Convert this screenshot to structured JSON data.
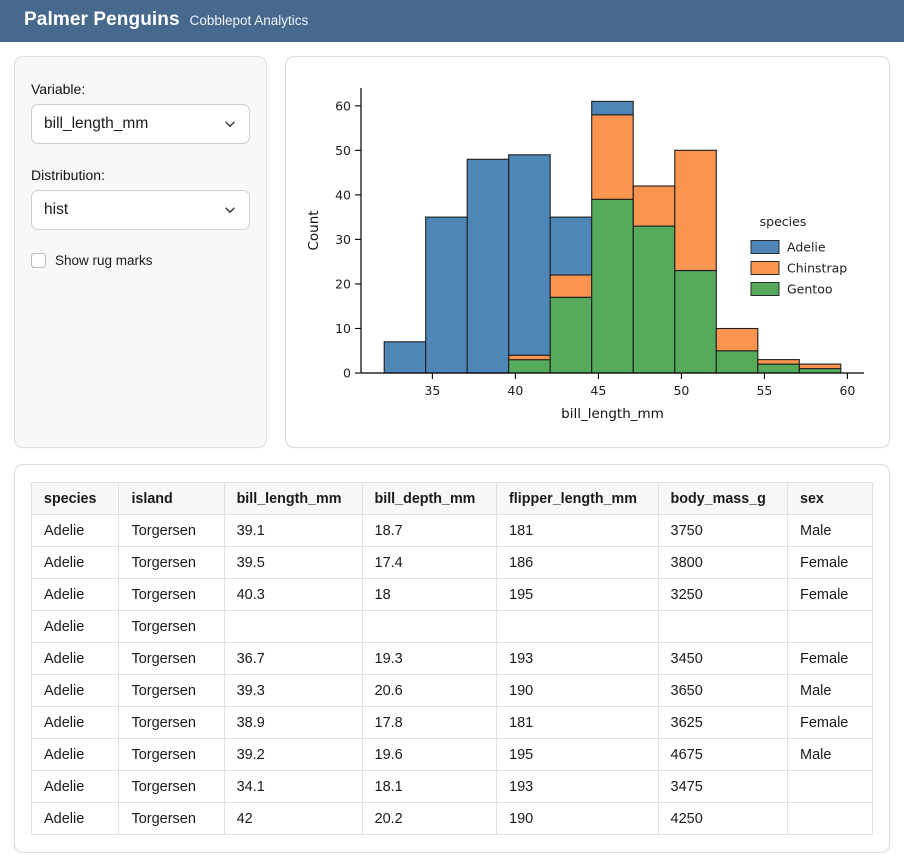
{
  "header": {
    "title": "Palmer Penguins",
    "subtitle": "Cobblepot Analytics"
  },
  "sidebar": {
    "variable_label": "Variable:",
    "variable_value": "bill_length_mm",
    "distribution_label": "Distribution:",
    "distribution_value": "hist",
    "rug_label": "Show rug marks",
    "rug_checked": false
  },
  "chart_data": {
    "type": "bar",
    "subtype": "stacked-histogram",
    "title": "",
    "xlabel": "bill_length_mm",
    "ylabel": "Count",
    "bin_start": 32.1,
    "bin_width": 2.5,
    "bin_count": 11,
    "xlim": [
      30.7,
      61.0
    ],
    "ylim": [
      0,
      64
    ],
    "xticks": [
      35,
      40,
      45,
      50,
      55,
      60
    ],
    "yticks": [
      0,
      10,
      20,
      30,
      40,
      50,
      60
    ],
    "grid": false,
    "legend_title": "species",
    "legend_position": "center-right",
    "stack_order_bottom_to_top": [
      "Gentoo",
      "Chinstrap",
      "Adelie"
    ],
    "series": [
      {
        "name": "Adelie",
        "color": "#4e86b8",
        "values": [
          7,
          35,
          48,
          45,
          13,
          3,
          0,
          0,
          0,
          0,
          0
        ]
      },
      {
        "name": "Chinstrap",
        "color": "#f9954e",
        "values": [
          0,
          0,
          0,
          1,
          5,
          19,
          9,
          27,
          5,
          1,
          1
        ]
      },
      {
        "name": "Gentoo",
        "color": "#55aa5c",
        "values": [
          0,
          0,
          0,
          3,
          17,
          39,
          33,
          23,
          5,
          2,
          1
        ]
      }
    ],
    "bar_edge_color": "#1f1f1f",
    "totals": [
      7,
      35,
      48,
      49,
      35,
      61,
      42,
      50,
      10,
      3,
      2
    ]
  },
  "table": {
    "columns": [
      "species",
      "island",
      "bill_length_mm",
      "bill_depth_mm",
      "flipper_length_mm",
      "body_mass_g",
      "sex"
    ],
    "col_widths_pct": [
      10.4,
      12.5,
      16.4,
      16.0,
      19.2,
      15.4,
      10.1
    ],
    "rows": [
      [
        "Adelie",
        "Torgersen",
        "39.1",
        "18.7",
        "181",
        "3750",
        "Male"
      ],
      [
        "Adelie",
        "Torgersen",
        "39.5",
        "17.4",
        "186",
        "3800",
        "Female"
      ],
      [
        "Adelie",
        "Torgersen",
        "40.3",
        "18",
        "195",
        "3250",
        "Female"
      ],
      [
        "Adelie",
        "Torgersen",
        "",
        "",
        "",
        "",
        ""
      ],
      [
        "Adelie",
        "Torgersen",
        "36.7",
        "19.3",
        "193",
        "3450",
        "Female"
      ],
      [
        "Adelie",
        "Torgersen",
        "39.3",
        "20.6",
        "190",
        "3650",
        "Male"
      ],
      [
        "Adelie",
        "Torgersen",
        "38.9",
        "17.8",
        "181",
        "3625",
        "Female"
      ],
      [
        "Adelie",
        "Torgersen",
        "39.2",
        "19.6",
        "195",
        "4675",
        "Male"
      ],
      [
        "Adelie",
        "Torgersen",
        "34.1",
        "18.1",
        "193",
        "3475",
        ""
      ],
      [
        "Adelie",
        "Torgersen",
        "42",
        "20.2",
        "190",
        "4250",
        ""
      ]
    ]
  },
  "colors": {
    "navbar": "#48698e",
    "sidebar_bg": "#f8f8f8",
    "card_border": "#dcdcdc",
    "table_border": "#dee2e6",
    "table_header_bg": "#f8f8f8"
  }
}
